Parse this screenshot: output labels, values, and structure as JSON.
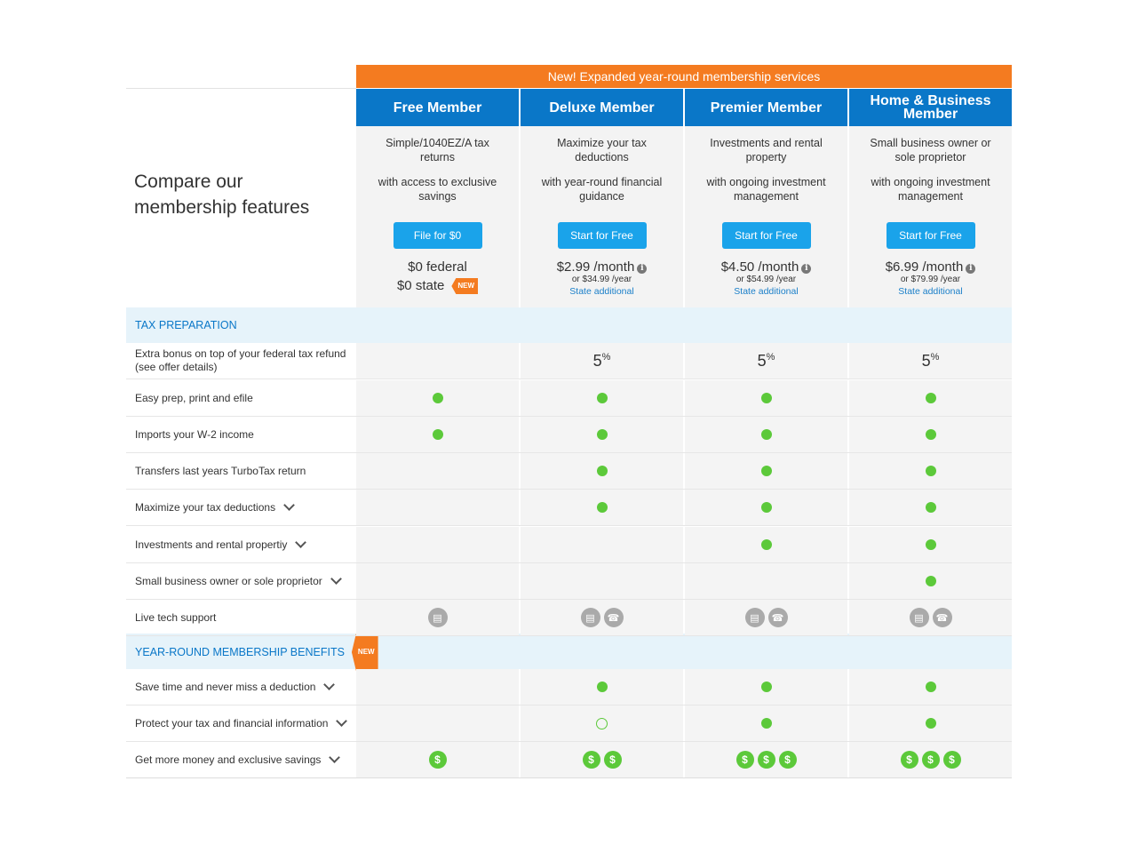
{
  "banner": "New! Expanded year-round membership services",
  "compare_title_line1": "Compare our",
  "compare_title_line2": "membership features",
  "plans": [
    {
      "name": "Free Member",
      "desc1": "Simple/1040EZ/A tax returns",
      "desc2": "with access to exclusive savings",
      "button": "File for $0",
      "price_line1": "$0 federal",
      "price_line2": "$0 state",
      "badge": "NEW"
    },
    {
      "name": "Deluxe Member",
      "desc1": "Maximize your tax deductions",
      "desc2": "with year-round financial guidance",
      "button": "Start for Free",
      "price_main": "$2.99 /month",
      "price_year": "or $34.99 /year",
      "state_link": "State additional"
    },
    {
      "name": "Premier Member",
      "desc1": "Investments and rental property",
      "desc2": "with ongoing investment management",
      "button": "Start for Free",
      "price_main": "$4.50 /month",
      "price_year": "or $54.99 /year",
      "state_link": "State additional"
    },
    {
      "name": "Home & Business Member",
      "desc1": "Small business owner or sole proprietor",
      "desc2": "with ongoing investment management",
      "button": "Start for Free",
      "price_main": "$6.99 /month",
      "price_year": "or $79.99 /year",
      "state_link": "State additional"
    }
  ],
  "info_glyph": "i",
  "sections": {
    "tax_prep": "TAX PREPARATION",
    "year_round": "YEAR-ROUND MEMBERSHIP BENEFITS",
    "year_round_badge": "NEW"
  },
  "rows": [
    {
      "label": "Extra bonus on top of your federal tax refund (see offer details)",
      "type": "pct",
      "cells": [
        "",
        "5",
        "5",
        "5"
      ],
      "unit": "%"
    },
    {
      "label": "Easy prep, print and efile",
      "type": "dot",
      "cells": [
        1,
        1,
        1,
        1
      ]
    },
    {
      "label": "Imports your W-2 income",
      "type": "dot",
      "cells": [
        1,
        1,
        1,
        1
      ]
    },
    {
      "label": "Transfers last years TurboTax return",
      "type": "dot",
      "cells": [
        0,
        1,
        1,
        1
      ]
    },
    {
      "label": "Maximize your tax deductions",
      "type": "dot",
      "chevron": true,
      "cells": [
        0,
        1,
        1,
        1
      ]
    },
    {
      "label": "Investments and rental propertiy",
      "type": "dot",
      "chevron": true,
      "cells": [
        0,
        0,
        1,
        1
      ]
    },
    {
      "label": "Small business owner or sole proprietor",
      "type": "dot",
      "chevron": true,
      "cells": [
        0,
        0,
        0,
        1
      ]
    },
    {
      "label": "Live tech support",
      "type": "support",
      "cells": [
        [
          "chat-icon"
        ],
        [
          "chat-icon",
          "phone-icon"
        ],
        [
          "chat-icon",
          "phone-icon"
        ],
        [
          "chat-icon",
          "phone-icon"
        ]
      ]
    },
    {
      "label": "Save time and never miss a deduction",
      "type": "dot",
      "chevron": true,
      "cells": [
        0,
        1,
        1,
        1
      ]
    },
    {
      "label": "Protect your tax and financial information",
      "type": "dot",
      "chevron": true,
      "cells": [
        0,
        2,
        1,
        1
      ]
    },
    {
      "label": "Get more money and exclusive savings",
      "type": "money",
      "chevron": true,
      "cells": [
        1,
        2,
        3,
        3
      ]
    }
  ],
  "colors": {
    "banner": "#f47b20",
    "plan_header": "#0a77c8",
    "button": "#1aa3ea",
    "check": "#5cc93a",
    "section_bg": "#e6f3fa"
  }
}
